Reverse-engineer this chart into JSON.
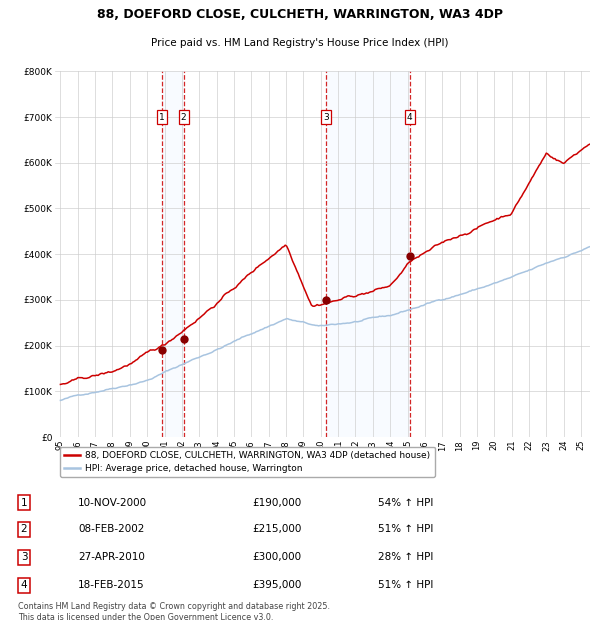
{
  "title_line1": "88, DOEFORD CLOSE, CULCHETH, WARRINGTON, WA3 4DP",
  "title_line2": "Price paid vs. HM Land Registry's House Price Index (HPI)",
  "background_color": "#ffffff",
  "plot_bg_color": "#ffffff",
  "grid_color": "#cccccc",
  "hpi_line_color": "#a8c4e0",
  "price_line_color": "#cc0000",
  "sale_marker_color": "#880000",
  "dashed_line_color": "#cc0000",
  "shade_color": "#ddeeff",
  "ylim": [
    0,
    800000
  ],
  "ytick_values": [
    0,
    100000,
    200000,
    300000,
    400000,
    500000,
    600000,
    700000,
    800000
  ],
  "ytick_labels": [
    "£0",
    "£100K",
    "£200K",
    "£300K",
    "£400K",
    "£500K",
    "£600K",
    "£700K",
    "£800K"
  ],
  "xmin_year": 1995,
  "xmax_year": 2025,
  "xtick_years": [
    1995,
    1996,
    1997,
    1998,
    1999,
    2000,
    2001,
    2002,
    2003,
    2004,
    2005,
    2006,
    2007,
    2008,
    2009,
    2010,
    2011,
    2012,
    2013,
    2014,
    2015,
    2016,
    2017,
    2018,
    2019,
    2020,
    2021,
    2022,
    2023,
    2024,
    2025
  ],
  "sales": [
    {
      "label": 1,
      "year": 2000.86,
      "price": 190000
    },
    {
      "label": 2,
      "year": 2002.1,
      "price": 215000
    },
    {
      "label": 3,
      "year": 2010.32,
      "price": 300000
    },
    {
      "label": 4,
      "year": 2015.13,
      "price": 395000
    }
  ],
  "sale_display": [
    {
      "num": 1,
      "date": "10-NOV-2000",
      "price": "£190,000",
      "hpi": "54% ↑ HPI"
    },
    {
      "num": 2,
      "date": "08-FEB-2002",
      "price": "£215,000",
      "hpi": "51% ↑ HPI"
    },
    {
      "num": 3,
      "date": "27-APR-2010",
      "price": "£300,000",
      "hpi": "28% ↑ HPI"
    },
    {
      "num": 4,
      "date": "18-FEB-2015",
      "price": "£395,000",
      "hpi": "51% ↑ HPI"
    }
  ],
  "legend_label_red": "88, DOEFORD CLOSE, CULCHETH, WARRINGTON, WA3 4DP (detached house)",
  "legend_label_blue": "HPI: Average price, detached house, Warrington",
  "footer": "Contains HM Land Registry data © Crown copyright and database right 2025.\nThis data is licensed under the Open Government Licence v3.0."
}
